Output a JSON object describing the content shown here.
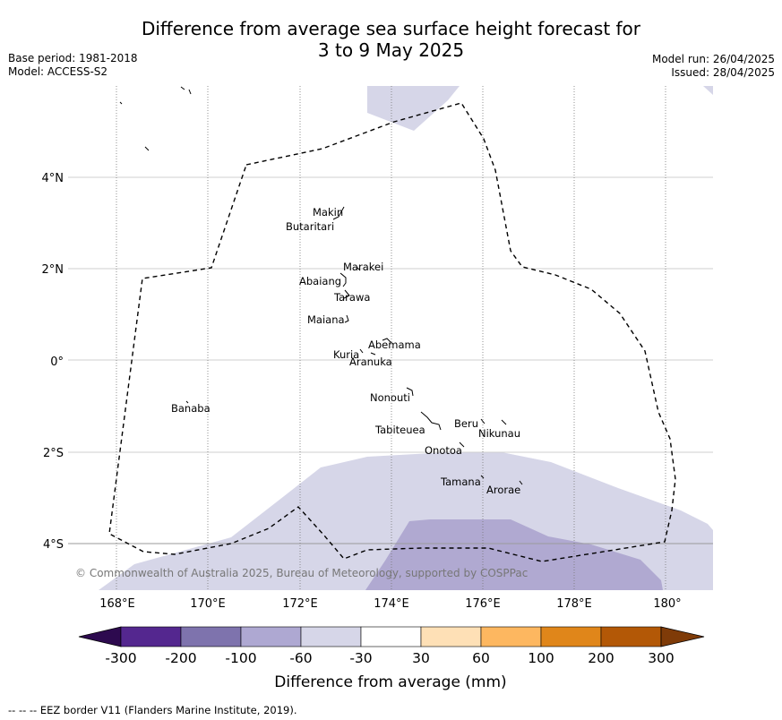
{
  "title": {
    "line1": "Difference from average sea surface height forecast for",
    "line2": "3 to 9 May 2025"
  },
  "meta_left": {
    "base_period": "Base period: 1981-2018",
    "model": "Model: ACCESS-S2"
  },
  "meta_right": {
    "model_run": "Model run: 26/04/2025",
    "issued": "Issued: 28/04/2025"
  },
  "map": {
    "lat_labels": [
      "4°N",
      "2°N",
      "0°",
      "2°S",
      "4°S"
    ],
    "lon_labels": [
      "168°E",
      "170°E",
      "172°E",
      "174°E",
      "176°E",
      "178°E",
      "180°"
    ],
    "islands": [
      "Makin",
      "Butaritari",
      "Marakei",
      "Abaiang",
      "Tarawa",
      "Maiana",
      "Abemama",
      "Kuria",
      "Aranuka",
      "Nonouti",
      "Beru",
      "Nikunau",
      "Tabiteuea",
      "Onotoa",
      "Tamana",
      "Arorae",
      "Banaba"
    ],
    "copyright": "© Commonwealth of Australia 2025, Bureau of Meteorology, supported by COSPPac",
    "colors": {
      "light_purple": "#d6d6e8",
      "mid_purple": "#b0a9d1",
      "eez_line": "#000000",
      "grid": "#cfcfcf"
    }
  },
  "colorbar": {
    "ticks": [
      "-300",
      "-200",
      "-100",
      "-60",
      "-30",
      "30",
      "60",
      "100",
      "200",
      "300"
    ],
    "label": "Difference from average (mm)",
    "colors": [
      "#2d0a4f",
      "#54278f",
      "#7e73ad",
      "#aea8d2",
      "#d6d6e8",
      "#ffffff",
      "#fee0b6",
      "#fdb760",
      "#e0861a",
      "#b35806",
      "#7f3b08"
    ]
  },
  "footer": {
    "eez_note": "-- -- -- EEZ border V11 (Flanders Marine Institute, 2019)."
  }
}
